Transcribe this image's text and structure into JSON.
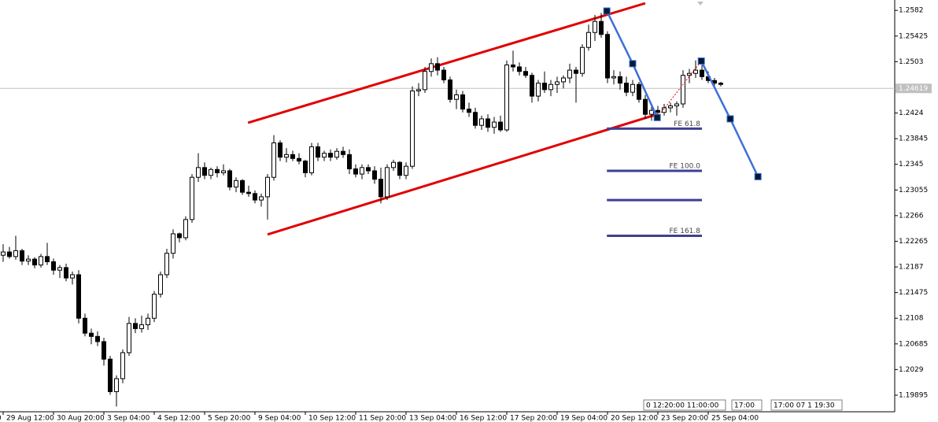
{
  "chart_data": {
    "type": "candlestick",
    "xlim": [
      -0.5,
      141.625
    ],
    "ylim": [
      1.1964,
      1.2598
    ],
    "yticks": [
      1.2582,
      1.25425,
      1.2503,
      1.2424,
      1.23845,
      1.2345,
      1.23055,
      1.2266,
      1.22265,
      1.2187,
      1.21475,
      1.2108,
      1.20685,
      1.2029,
      1.19895
    ],
    "current_price": 1.24619,
    "xticks": [
      {
        "value": -1.5,
        "label": "0"
      },
      {
        "value": 0,
        "label": "29 Aug 12:00"
      },
      {
        "value": 8,
        "label": "30 Aug 20:00"
      },
      {
        "value": 16,
        "label": "3 Sep 04:00"
      },
      {
        "value": 24,
        "label": "4 Sep 12:00"
      },
      {
        "value": 32,
        "label": "5 Sep 20:00"
      },
      {
        "value": 40,
        "label": "9 Sep 04:00"
      },
      {
        "value": 48,
        "label": "10 Sep 12:00"
      },
      {
        "value": 56,
        "label": "11 Sep 20:00"
      },
      {
        "value": 64,
        "label": "13 Sep 04:00"
      },
      {
        "value": 72,
        "label": "16 Sep 12:00"
      },
      {
        "value": 80,
        "label": "17 Sep 20:00"
      },
      {
        "value": 88,
        "label": "19 Sep 04:00"
      },
      {
        "value": 96,
        "label": "20 Sep 12:00"
      },
      {
        "value": 104,
        "label": "23 Sep 20:00"
      },
      {
        "value": 112,
        "label": "25 Sep 04:00"
      }
    ],
    "up_color": "#ffffff",
    "down_color": "#000000",
    "candles": [
      [
        1.2205,
        1.2222,
        1.2195,
        1.221
      ],
      [
        1.221,
        1.2218,
        1.22,
        1.2203
      ],
      [
        1.2203,
        1.2235,
        1.2198,
        1.2212
      ],
      [
        1.2212,
        1.2215,
        1.219,
        1.2196
      ],
      [
        1.2196,
        1.2205,
        1.219,
        1.2199
      ],
      [
        1.2199,
        1.2202,
        1.2185,
        1.219
      ],
      [
        1.219,
        1.2207,
        1.2186,
        1.2203
      ],
      [
        1.2203,
        1.2224,
        1.219,
        1.2195
      ],
      [
        1.2195,
        1.22,
        1.2175,
        1.2182
      ],
      [
        1.2182,
        1.219,
        1.217,
        1.2186
      ],
      [
        1.2186,
        1.2192,
        1.2165,
        1.217
      ],
      [
        1.217,
        1.218,
        1.216,
        1.2175
      ],
      [
        1.2175,
        1.2182,
        1.21,
        1.2108
      ],
      [
        1.2108,
        1.2115,
        1.208,
        1.2085
      ],
      [
        1.2085,
        1.2092,
        1.2068,
        1.208
      ],
      [
        1.208,
        1.2088,
        1.2065,
        1.2072
      ],
      [
        1.2072,
        1.2078,
        1.2035,
        1.2045
      ],
      [
        1.2045,
        1.205,
        1.199,
        1.1995
      ],
      [
        1.1995,
        1.202,
        1.1972,
        1.2015
      ],
      [
        1.2015,
        1.206,
        1.2008,
        1.2055
      ],
      [
        1.2055,
        1.211,
        1.205,
        1.21
      ],
      [
        1.21,
        1.2108,
        1.2085,
        1.2092
      ],
      [
        1.2092,
        1.2112,
        1.2086,
        1.2098
      ],
      [
        1.2098,
        1.2115,
        1.209,
        1.2108
      ],
      [
        1.2108,
        1.215,
        1.2102,
        1.2145
      ],
      [
        1.2145,
        1.218,
        1.214,
        1.2175
      ],
      [
        1.2175,
        1.2215,
        1.217,
        1.2208
      ],
      [
        1.2208,
        1.2245,
        1.22,
        1.2238
      ],
      [
        1.2238,
        1.224,
        1.2225,
        1.2232
      ],
      [
        1.2232,
        1.2265,
        1.2228,
        1.226
      ],
      [
        1.226,
        1.233,
        1.2255,
        1.2325
      ],
      [
        1.2325,
        1.2362,
        1.2318,
        1.234
      ],
      [
        1.234,
        1.2348,
        1.2322,
        1.2328
      ],
      [
        1.2328,
        1.234,
        1.2322,
        1.2337
      ],
      [
        1.2337,
        1.2342,
        1.2325,
        1.2332
      ],
      [
        1.2332,
        1.2345,
        1.2328,
        1.2335
      ],
      [
        1.2335,
        1.2338,
        1.2305,
        1.231
      ],
      [
        1.231,
        1.2325,
        1.2302,
        1.232
      ],
      [
        1.232,
        1.2322,
        1.2298,
        1.2302
      ],
      [
        1.2302,
        1.2312,
        1.2295,
        1.23
      ],
      [
        1.23,
        1.2305,
        1.2285,
        1.229
      ],
      [
        1.229,
        1.23,
        1.228,
        1.2295
      ],
      [
        1.2295,
        1.233,
        1.226,
        1.2325
      ],
      [
        1.2325,
        1.239,
        1.232,
        1.2378
      ],
      [
        1.2378,
        1.2382,
        1.235,
        1.2356
      ],
      [
        1.2356,
        1.237,
        1.2348,
        1.236
      ],
      [
        1.236,
        1.2366,
        1.235,
        1.2354
      ],
      [
        1.2354,
        1.2362,
        1.2345,
        1.235
      ],
      [
        1.235,
        1.2352,
        1.2325,
        1.2332
      ],
      [
        1.2332,
        1.2378,
        1.2328,
        1.2372
      ],
      [
        1.2372,
        1.2378,
        1.235,
        1.2356
      ],
      [
        1.2356,
        1.2366,
        1.235,
        1.2362
      ],
      [
        1.2362,
        1.2368,
        1.235,
        1.2356
      ],
      [
        1.2356,
        1.237,
        1.2352,
        1.2365
      ],
      [
        1.2365,
        1.2372,
        1.2355,
        1.236
      ],
      [
        1.236,
        1.2368,
        1.233,
        1.2338
      ],
      [
        1.2338,
        1.2345,
        1.2325,
        1.233
      ],
      [
        1.233,
        1.2345,
        1.2322,
        1.234
      ],
      [
        1.234,
        1.2345,
        1.233,
        1.2335
      ],
      [
        1.2335,
        1.2342,
        1.2315,
        1.2322
      ],
      [
        1.2322,
        1.234,
        1.2285,
        1.2295
      ],
      [
        1.2295,
        1.2345,
        1.229,
        1.234
      ],
      [
        1.234,
        1.2352,
        1.2335,
        1.2348
      ],
      [
        1.2348,
        1.235,
        1.2322,
        1.2328
      ],
      [
        1.2328,
        1.2348,
        1.2322,
        1.2342
      ],
      [
        1.2342,
        1.2465,
        1.2338,
        1.2458
      ],
      [
        1.2458,
        1.247,
        1.245,
        1.246
      ],
      [
        1.246,
        1.2495,
        1.2455,
        1.2488
      ],
      [
        1.2488,
        1.2508,
        1.248,
        1.25
      ],
      [
        1.25,
        1.251,
        1.2482,
        1.249
      ],
      [
        1.249,
        1.2495,
        1.247,
        1.2475
      ],
      [
        1.2475,
        1.248,
        1.244,
        1.2445
      ],
      [
        1.2445,
        1.246,
        1.243,
        1.2452
      ],
      [
        1.2452,
        1.2458,
        1.2425,
        1.243
      ],
      [
        1.243,
        1.244,
        1.2418,
        1.2425
      ],
      [
        1.2425,
        1.2432,
        1.24,
        1.2405
      ],
      [
        1.2405,
        1.242,
        1.2398,
        1.2415
      ],
      [
        1.2415,
        1.2422,
        1.2395,
        1.2402
      ],
      [
        1.2402,
        1.2418,
        1.2392,
        1.241
      ],
      [
        1.241,
        1.242,
        1.2395,
        1.2398
      ],
      [
        1.2398,
        1.2505,
        1.2395,
        1.2498
      ],
      [
        1.2498,
        1.252,
        1.2488,
        1.2495
      ],
      [
        1.2495,
        1.2502,
        1.2482,
        1.2488
      ],
      [
        1.2488,
        1.2495,
        1.2478,
        1.2482
      ],
      [
        1.2482,
        1.2486,
        1.244,
        1.245
      ],
      [
        1.245,
        1.2475,
        1.2442,
        1.247
      ],
      [
        1.247,
        1.2488,
        1.2455,
        1.246
      ],
      [
        1.246,
        1.2475,
        1.245,
        1.2468
      ],
      [
        1.2468,
        1.248,
        1.2455,
        1.2472
      ],
      [
        1.2472,
        1.2482,
        1.2462,
        1.2478
      ],
      [
        1.2478,
        1.25,
        1.247,
        1.249
      ],
      [
        1.249,
        1.2495,
        1.244,
        1.2485
      ],
      [
        1.2485,
        1.253,
        1.248,
        1.2525
      ],
      [
        1.2525,
        1.256,
        1.252,
        1.2548
      ],
      [
        1.2548,
        1.2575,
        1.2535,
        1.2565
      ],
      [
        1.2565,
        1.2578,
        1.254,
        1.2545
      ],
      [
        1.2545,
        1.255,
        1.247,
        1.2478
      ],
      [
        1.2478,
        1.249,
        1.2468,
        1.248
      ],
      [
        1.248,
        1.2488,
        1.246,
        1.247
      ],
      [
        1.247,
        1.248,
        1.245,
        1.2456
      ],
      [
        1.2456,
        1.2475,
        1.245,
        1.2468
      ],
      [
        1.2468,
        1.2472,
        1.244,
        1.2445
      ],
      [
        1.2445,
        1.2452,
        1.2415,
        1.2422
      ],
      [
        1.2422,
        1.2435,
        1.2412,
        1.2428
      ],
      [
        1.2428,
        1.2435,
        1.2418,
        1.2425
      ],
      [
        1.2425,
        1.2438,
        1.242,
        1.2432
      ],
      [
        1.2432,
        1.244,
        1.2425,
        1.2435
      ],
      [
        1.2435,
        1.2442,
        1.242,
        1.2438
      ],
      [
        1.2438,
        1.249,
        1.2432,
        1.2482
      ],
      [
        1.2482,
        1.2492,
        1.247,
        1.2485
      ],
      [
        1.2485,
        1.2505,
        1.2478,
        1.249
      ],
      [
        1.249,
        1.2498,
        1.2475,
        1.248
      ],
      [
        1.248,
        1.2488,
        1.247,
        1.2474
      ],
      [
        1.2474,
        1.2478,
        1.2466,
        1.247
      ],
      [
        1.247,
        1.2472,
        1.2465,
        1.2468
      ]
    ],
    "channel": {
      "color": "#e00000",
      "lines": [
        [
          [
            38.9,
            1.2409
          ],
          [
            102,
            1.2593
          ]
        ],
        [
          [
            42,
            1.2237
          ],
          [
            103.9,
            1.2422
          ]
        ]
      ]
    },
    "zigzag": {
      "color": "#3d6fd6",
      "points": [
        [
          95.9,
          1.2581
        ],
        [
          100,
          1.25
        ],
        [
          103.9,
          1.2417
        ],
        [
          110.9,
          1.2504
        ],
        [
          115.5,
          1.2415
        ],
        [
          119.9,
          1.2326
        ]
      ]
    },
    "fe_color": "#3f3f94",
    "fe_range": [
      95.9,
      111
    ],
    "fe_levels": [
      {
        "label": "FE 61.8",
        "value": 1.24
      },
      {
        "label": "FE 100.0",
        "value": 1.2335
      },
      {
        "label": null,
        "value": 1.229
      },
      {
        "label": "FE 161.8",
        "value": 1.2235
      }
    ],
    "time_markers": [
      "0 12:20:00 11:00:00",
      "17:00",
      "17:00 07 1 19:30"
    ]
  }
}
